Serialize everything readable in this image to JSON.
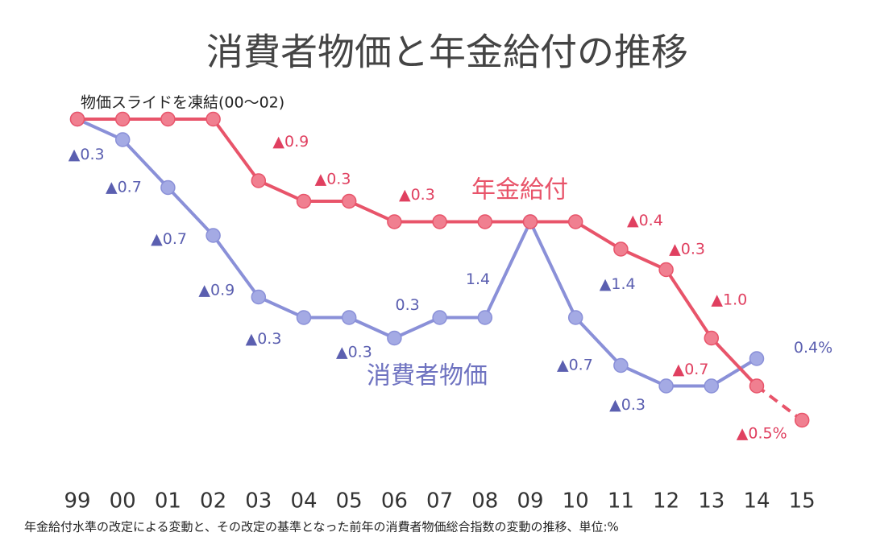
{
  "chart_data": {
    "type": "line",
    "title": "消費者物価と年金給付の推移",
    "annotation": "物価スライドを凍結(00～02)",
    "footnote": "年金給付水準の改定による変動と、その改定の基準となった前年の消費者物価総合指数の変動の推移、単位:%",
    "categories": [
      "99",
      "00",
      "01",
      "02",
      "03",
      "04",
      "05",
      "06",
      "07",
      "08",
      "09",
      "10",
      "11",
      "12",
      "13",
      "14",
      "15"
    ],
    "dashed_last_segment": true,
    "series": [
      {
        "name": "年金給付",
        "color": "#e8546a",
        "values": [
          null,
          0,
          0,
          0,
          -0.9,
          -0.3,
          0,
          -0.3,
          0,
          0,
          0,
          0,
          -0.4,
          -0.3,
          -1.0,
          -0.7,
          -0.5
        ],
        "value_labels": [
          null,
          null,
          null,
          null,
          "▲0.9",
          "▲0.3",
          null,
          "▲0.3",
          null,
          null,
          null,
          null,
          "▲0.4",
          "▲0.3",
          "▲1.0",
          "▲0.7",
          "▲0.5%"
        ]
      },
      {
        "name": "消費者物価",
        "color": "#8a90d8",
        "values": [
          null,
          -0.3,
          -0.7,
          -0.7,
          -0.9,
          -0.3,
          0,
          -0.3,
          0.3,
          0,
          1.4,
          -1.4,
          -0.7,
          -0.3,
          0,
          0.4,
          null
        ],
        "value_labels": [
          null,
          "▲0.3",
          "▲0.7",
          "▲0.7",
          "▲0.9",
          "▲0.3",
          null,
          "▲0.3",
          "0.3",
          null,
          "1.4",
          "▲1.4",
          "▲0.7",
          "▲0.3",
          null,
          "0.4%",
          null
        ]
      }
    ]
  }
}
